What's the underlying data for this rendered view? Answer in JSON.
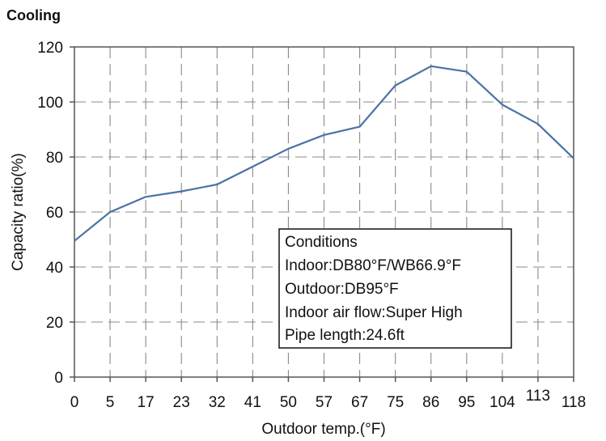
{
  "chart_data": {
    "type": "line",
    "title": "Cooling",
    "xlabel": "Outdoor temp.(°F)",
    "ylabel": "Capacity ratio(%)",
    "categories": [
      "0",
      "5",
      "17",
      "23",
      "32",
      "41",
      "50",
      "57",
      "67",
      "75",
      "86",
      "95",
      "104",
      "113",
      "118"
    ],
    "series": [
      {
        "values": [
          49.5,
          60,
          65.5,
          67.5,
          70,
          76.5,
          83,
          88,
          91,
          106,
          113,
          111,
          99,
          92,
          79.5
        ]
      }
    ],
    "ylim": [
      0,
      120
    ],
    "yticks": [
      "0",
      "20",
      "40",
      "60",
      "80",
      "100",
      "120"
    ],
    "grid": true,
    "line_color": "#4a72a6",
    "conditions_box": {
      "lines": [
        "Conditions",
        "Indoor:DB80°F/WB66.9°F",
        "Outdoor:DB95°F",
        "Indoor air flow:Super High",
        "Pipe length:24.6ft"
      ]
    }
  }
}
